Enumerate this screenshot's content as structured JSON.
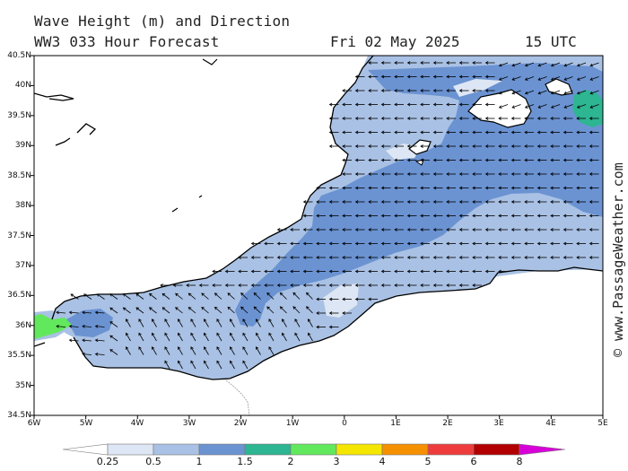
{
  "title": {
    "line1": "Wave Height (m) and Direction",
    "line2": "WW3 033 Hour Forecast",
    "date": "Fri 02 May 2025",
    "time": "15 UTC"
  },
  "credit": "© www.PassageWeather.com",
  "axes": {
    "lat_labels": [
      "40.5N",
      "40N",
      "39.5N",
      "39N",
      "38.5N",
      "38N",
      "37.5N",
      "37N",
      "36.5N",
      "36N",
      "35.5N",
      "35N",
      "34.5N"
    ],
    "lon_labels": [
      "6W",
      "5W",
      "4W",
      "3W",
      "2W",
      "1W",
      "0",
      "1E",
      "2E",
      "3E",
      "4E",
      "5E"
    ]
  },
  "legend": {
    "labels": [
      "0.25",
      "0.5",
      "1",
      "1.5",
      "2",
      "3",
      "4",
      "5",
      "6",
      "8"
    ],
    "colors": [
      "#ffffff",
      "#dde6f4",
      "#a9c1e4",
      "#6b93d2",
      "#2eb592",
      "#62e85c",
      "#f5e600",
      "#f59000",
      "#ee3c3c",
      "#b20000",
      "#d800d8"
    ]
  },
  "map": {
    "land_color": "#ffffff",
    "coast_color": "#000000",
    "sea_colors": {
      "light": "#a9c1e4",
      "mid": "#6b93d2",
      "pale": "#dde6f4",
      "teal": "#2eb592",
      "green": "#62e85c"
    },
    "predominant_wave_direction": "west"
  }
}
